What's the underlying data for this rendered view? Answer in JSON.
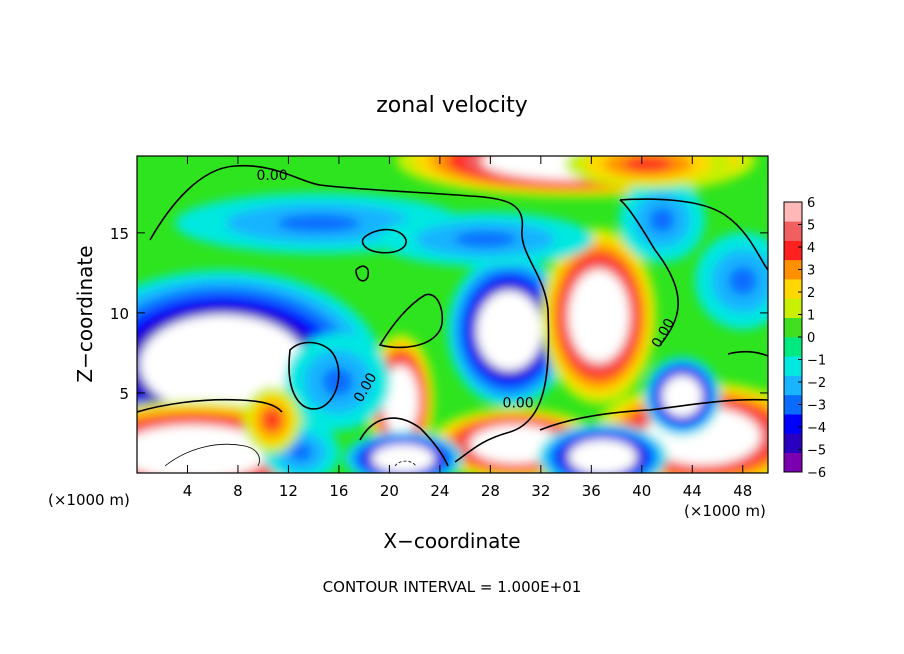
{
  "chart_data": {
    "type": "heatmap",
    "title": "zonal velocity",
    "xlabel": "X−coordinate",
    "ylabel": "Z−coordinate",
    "x_unit_left": "(×1000 m)",
    "x_unit_right": "(×1000 m)",
    "footer": "CONTOUR INTERVAL = 1.000E+01",
    "xlim": [
      0,
      50
    ],
    "ylim": [
      0,
      19.8
    ],
    "x_ticks": [
      4,
      8,
      12,
      16,
      20,
      24,
      28,
      32,
      36,
      40,
      44,
      48
    ],
    "x_tick_labels": [
      "4",
      "8",
      "12",
      "16",
      "20",
      "24",
      "28",
      "32",
      "36",
      "40",
      "44",
      "48"
    ],
    "y_ticks": [
      5,
      10,
      15
    ],
    "y_tick_labels": [
      "5",
      "10",
      "15"
    ],
    "colorbar": {
      "min": -6,
      "max": 6,
      "tick_values": [
        6,
        5,
        4,
        3,
        2,
        1,
        0,
        -1,
        -2,
        -3,
        -4,
        -5,
        -6
      ],
      "tick_labels": [
        "6",
        "5",
        "4",
        "3",
        "2",
        "1",
        "0",
        "−1",
        "−2",
        "−3",
        "−4",
        "−5",
        "−6"
      ],
      "colors": [
        "#7a00b0",
        "#2a00c0",
        "#0000ff",
        "#0a6cff",
        "#19b4ff",
        "#00e8e0",
        "#00e880",
        "#40e020",
        "#c8f000",
        "#ffd800",
        "#ff9000",
        "#ff2020",
        "#f06060",
        "#ffb8b8"
      ]
    },
    "contour_labels": [
      {
        "text": "0.00",
        "x": 10.7,
        "y": 18.3
      },
      {
        "text": "0.00",
        "x": 18.4,
        "y": 5.2
      },
      {
        "text": "0.00",
        "x": 30.2,
        "y": 4.1
      },
      {
        "text": "0.00",
        "x": 42.0,
        "y": 8.6
      }
    ],
    "features": [
      {
        "kind": "negative-core",
        "x": 6.8,
        "y": 6.8,
        "rx": 6.6,
        "ry": 3.1
      },
      {
        "kind": "negative-core",
        "x": 29.5,
        "y": 8.9,
        "rx": 2.6,
        "ry": 2.5
      },
      {
        "kind": "positive-core",
        "x": 36.6,
        "y": 9.8,
        "rx": 2.4,
        "ry": 2.9
      },
      {
        "kind": "positive-core",
        "x": 20.9,
        "y": 4.5,
        "rx": 1.4,
        "ry": 2.2
      },
      {
        "kind": "positive-core",
        "x": 4.5,
        "y": 1.3,
        "rx": 6.0,
        "ry": 1.7
      },
      {
        "kind": "positive-core",
        "x": 30.0,
        "y": 1.8,
        "rx": 3.6,
        "ry": 1.2
      },
      {
        "kind": "positive-core",
        "x": 44.8,
        "y": 2.3,
        "rx": 4.6,
        "ry": 1.8
      },
      {
        "kind": "positive-core",
        "x": 34.8,
        "y": 19.5,
        "rx": 7.5,
        "ry": 1.2
      },
      {
        "kind": "negative-core",
        "x": 43.2,
        "y": 4.8,
        "rx": 1.6,
        "ry": 1.3
      },
      {
        "kind": "negative-core",
        "x": 36.9,
        "y": 1.0,
        "rx": 2.7,
        "ry": 1.1
      },
      {
        "kind": "negative-core",
        "x": 21.1,
        "y": 0.9,
        "rx": 2.5,
        "ry": 0.9
      },
      {
        "kind": "negative-band",
        "x": 14.4,
        "y": 15.6,
        "rx": 6.0,
        "ry": 1.0
      },
      {
        "kind": "negative-band",
        "x": 27.6,
        "y": 14.6,
        "rx": 4.5,
        "ry": 0.9
      },
      {
        "kind": "negative-band",
        "x": 41.6,
        "y": 15.8,
        "rx": 1.8,
        "ry": 1.4
      },
      {
        "kind": "negative-band",
        "x": 48.0,
        "y": 12.0,
        "rx": 2.0,
        "ry": 1.6
      },
      {
        "kind": "negative-band",
        "x": 15.9,
        "y": 5.7,
        "rx": 2.2,
        "ry": 1.6
      },
      {
        "kind": "negative-band",
        "x": 13.0,
        "y": 1.3,
        "rx": 1.6,
        "ry": 1.0
      },
      {
        "kind": "positive-band",
        "x": 10.7,
        "y": 3.3,
        "rx": 1.2,
        "ry": 1.1
      },
      {
        "kind": "positive-band",
        "x": 40.5,
        "y": 19.3,
        "rx": 3.5,
        "ry": 0.8
      }
    ]
  }
}
